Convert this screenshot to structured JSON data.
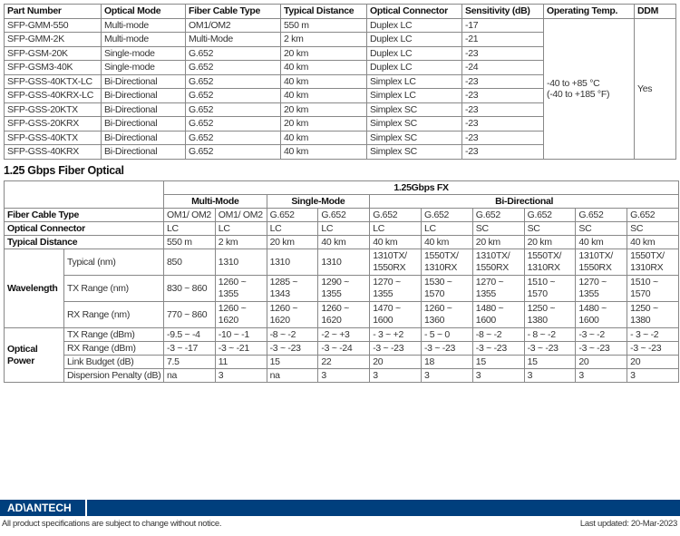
{
  "table1": {
    "headers": [
      "Part Number",
      "Optical Mode",
      "Fiber Cable Type",
      "Typical Distance",
      "Optical Connector",
      "Sensitivity (dB)",
      "Operating Temp.",
      "DDM"
    ],
    "rows": [
      [
        "SFP-GMM-550",
        "Multi-mode",
        "OM1/OM2",
        "550 m",
        "Duplex LC",
        "-17"
      ],
      [
        "SFP-GMM-2K",
        "Multi-mode",
        "Multi-Mode",
        "2 km",
        "Duplex LC",
        "-21"
      ],
      [
        "SFP-GSM-20K",
        "Single-mode",
        "G.652",
        "20 km",
        "Duplex LC",
        "-23"
      ],
      [
        "SFP-GSM3-40K",
        "Single-mode",
        "G.652",
        "40 km",
        "Duplex LC",
        "-24"
      ],
      [
        "SFP-GSS-40KTX-LC",
        "Bi-Directional",
        "G.652",
        "40 km",
        "Simplex LC",
        "-23"
      ],
      [
        "SFP-GSS-40KRX-LC",
        "Bi-Directional",
        "G.652",
        "40 km",
        "Simplex LC",
        "-23"
      ],
      [
        "SFP-GSS-20KTX",
        "Bi-Directional",
        "G.652",
        "20 km",
        "Simplex SC",
        "-23"
      ],
      [
        "SFP-GSS-20KRX",
        "Bi-Directional",
        "G.652",
        "20 km",
        "Simplex SC",
        "-23"
      ],
      [
        "SFP-GSS-40KTX",
        "Bi-Directional",
        "G.652",
        "40 km",
        "Simplex SC",
        "-23"
      ],
      [
        "SFP-GSS-40KRX",
        "Bi-Directional",
        "G.652",
        "40 km",
        "Simplex SC",
        "-23"
      ]
    ],
    "temp_line1": "-40 to +85 °C",
    "temp_line2": "(-40 to +185 °F)",
    "ddm": "Yes"
  },
  "section_title": "1.25 Gbps Fiber Optical",
  "table2": {
    "group": "1.25Gbps FX",
    "modes": [
      "Multi-Mode",
      "Single-Mode",
      "Bi-Directional"
    ],
    "fiber_label": "Fiber Cable Type",
    "fiber": [
      "OM1/ OM2",
      "OM1/ OM2",
      "G.652",
      "G.652",
      "G.652",
      "G.652",
      "G.652",
      "G.652",
      "G.652",
      "G.652"
    ],
    "conn_label": "Optical Connector",
    "conn": [
      "LC",
      "LC",
      "LC",
      "LC",
      "LC",
      "LC",
      "SC",
      "SC",
      "SC",
      "SC"
    ],
    "dist_label": "Typical Distance",
    "dist": [
      "550 m",
      "2 km",
      "20 km",
      "40 km",
      "40 km",
      "40 km",
      "20 km",
      "20 km",
      "40 km",
      "40 km"
    ],
    "wl_label": "Wavelength",
    "wl_rows": [
      {
        "label": "Typical (nm)",
        "values": [
          "850",
          "1310",
          "1310",
          "1310",
          "1310TX/ 1550RX",
          "1550TX/ 1310RX",
          "1310TX/ 1550RX",
          "1550TX/ 1310RX",
          "1310TX/ 1550RX",
          "1550TX/ 1310RX"
        ]
      },
      {
        "label": "TX Range (nm)",
        "values": [
          "830 ~ 860",
          "1260 ~ 1355",
          "1285 ~ 1343",
          "1290 ~ 1355",
          "1270 ~ 1355",
          "1530 ~ 1570",
          "1270 ~ 1355",
          "1510 ~ 1570",
          "1270 ~ 1355",
          "1510 ~ 1570"
        ]
      },
      {
        "label": "RX Range (nm)",
        "values": [
          "770 ~ 860",
          "1260 ~ 1620",
          "1260 ~ 1620",
          "1260 ~ 1620",
          "1470 ~ 1600",
          "1260 ~ 1360",
          "1480 ~ 1600",
          "1250 ~ 1380",
          "1480 ~ 1600",
          "1250 ~ 1380"
        ]
      }
    ],
    "op_label": "Optical Power",
    "op_rows": [
      {
        "label": "TX Range (dBm)",
        "values": [
          "-9.5 ~ -4",
          "-10 ~ -1",
          "-8 ~ -2",
          "-2 ~ +3",
          "- 3 ~ +2",
          "- 5 ~ 0",
          "-8 ~ -2",
          "- 8 ~ -2",
          "-3 ~ -2",
          "- 3 ~ -2"
        ]
      },
      {
        "label": "RX Range (dBm)",
        "values": [
          "-3 ~ -17",
          "-3 ~ -21",
          "-3 ~ -23",
          "-3 ~ -24",
          "-3 ~ -23",
          "-3 ~ -23",
          "-3 ~ -23",
          "-3 ~ -23",
          "-3 ~ -23",
          "-3 ~ -23"
        ]
      },
      {
        "label": "Link Budget (dB)",
        "values": [
          "7.5",
          "11",
          "15",
          "22",
          "20",
          "18",
          "15",
          "15",
          "20",
          "20"
        ]
      },
      {
        "label": "Dispersion Penalty (dB)",
        "values": [
          "na",
          "3",
          "na",
          "3",
          "3",
          "3",
          "3",
          "3",
          "3",
          "3"
        ]
      }
    ]
  },
  "footer": {
    "logo": "ADVANTECH",
    "notice": "All product specifications are subject to change without notice.",
    "updated": "Last updated: 20-Mar-2023",
    "brand_color": "#003f7d"
  }
}
